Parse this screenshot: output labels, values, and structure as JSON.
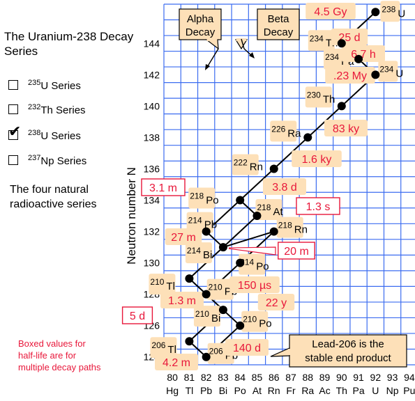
{
  "title": "The Uranium-238 Decay Series",
  "series_options": [
    {
      "mass": "235",
      "label": "U Series",
      "checked": false
    },
    {
      "mass": "232",
      "label": "Th Series",
      "checked": false
    },
    {
      "mass": "238",
      "label": "U Series",
      "checked": true
    },
    {
      "mass": "237",
      "label": "Np Series",
      "checked": false
    }
  ],
  "subtitle": "The four natural radioactive series",
  "note": "Boxed values for half-life are for multiple decay paths",
  "legend": {
    "alpha": "Alpha Decay",
    "beta": "Beta Decay"
  },
  "end_note": "Lead-206 is the stable end product",
  "colors": {
    "grid": "#3b6cf0",
    "label_bg": "#fde0b8",
    "halflife": "#e8173a",
    "box_border": "#e8173a"
  },
  "chart_data": {
    "type": "diagram",
    "ylabel": "Neutron number N",
    "z_ticks": [
      "80",
      "81",
      "82",
      "83",
      "84",
      "85",
      "86",
      "87",
      "88",
      "89",
      "90",
      "91",
      "92",
      "93",
      "94"
    ],
    "element_labels": [
      "Hg",
      "Tl",
      "Pb",
      "Bi",
      "Po",
      "At",
      "Rn",
      "Fr",
      "Ra",
      "Ac",
      "Th",
      "Pa",
      "U",
      "Np",
      "Pu"
    ],
    "n_ticks": [
      "124",
      "126",
      "128",
      "130",
      "132",
      "134",
      "136",
      "138",
      "140",
      "142",
      "144"
    ],
    "nodes": [
      {
        "z": 92,
        "n": 146,
        "mass": "238",
        "sym": "U"
      },
      {
        "z": 90,
        "n": 144,
        "mass": "234",
        "sym": "Th"
      },
      {
        "z": 91,
        "n": 143,
        "mass": "234",
        "sym": "Pa"
      },
      {
        "z": 92,
        "n": 142,
        "mass": "234",
        "sym": "U"
      },
      {
        "z": 90,
        "n": 140,
        "mass": "230",
        "sym": "Th"
      },
      {
        "z": 88,
        "n": 138,
        "mass": "226",
        "sym": "Ra"
      },
      {
        "z": 86,
        "n": 136,
        "mass": "222",
        "sym": "Rn"
      },
      {
        "z": 84,
        "n": 134,
        "mass": "218",
        "sym": "Po"
      },
      {
        "z": 85,
        "n": 133,
        "mass": "218",
        "sym": "At"
      },
      {
        "z": 82,
        "n": 132,
        "mass": "214",
        "sym": "Pb"
      },
      {
        "z": 86,
        "n": 132,
        "mass": "218",
        "sym": "Rn"
      },
      {
        "z": 83,
        "n": 131,
        "mass": "214",
        "sym": "Bi"
      },
      {
        "z": 84,
        "n": 130,
        "mass": "214",
        "sym": "Po"
      },
      {
        "z": 81,
        "n": 129,
        "mass": "210",
        "sym": "Tl"
      },
      {
        "z": 82,
        "n": 128,
        "mass": "210",
        "sym": "Pb"
      },
      {
        "z": 83,
        "n": 127,
        "mass": "210",
        "sym": "Bi"
      },
      {
        "z": 84,
        "n": 126,
        "mass": "210",
        "sym": "Po"
      },
      {
        "z": 81,
        "n": 125,
        "mass": "206",
        "sym": "Tl"
      },
      {
        "z": 82,
        "n": 124,
        "mass": "206",
        "sym": "Pb"
      }
    ],
    "half_lives": [
      {
        "text": "4.5 Gy",
        "boxed": false
      },
      {
        "text": "25 d",
        "boxed": false
      },
      {
        "text": "6.7 h",
        "boxed": false
      },
      {
        "text": ".23 My",
        "boxed": false
      },
      {
        "text": "83 ky",
        "boxed": false
      },
      {
        "text": "1.6 ky",
        "boxed": false
      },
      {
        "text": "3.8 d",
        "boxed": false
      },
      {
        "text": "3.1 m",
        "boxed": true
      },
      {
        "text": "1.3 s",
        "boxed": true
      },
      {
        "text": "27 m",
        "boxed": false
      },
      {
        "text": "20 m",
        "boxed": true
      },
      {
        "text": "150 µs",
        "boxed": false
      },
      {
        "text": "1.3 m",
        "boxed": false
      },
      {
        "text": "22 y",
        "boxed": false
      },
      {
        "text": "5 d",
        "boxed": true
      },
      {
        "text": "140 d",
        "boxed": false
      },
      {
        "text": "4.2 m",
        "boxed": false
      }
    ]
  }
}
